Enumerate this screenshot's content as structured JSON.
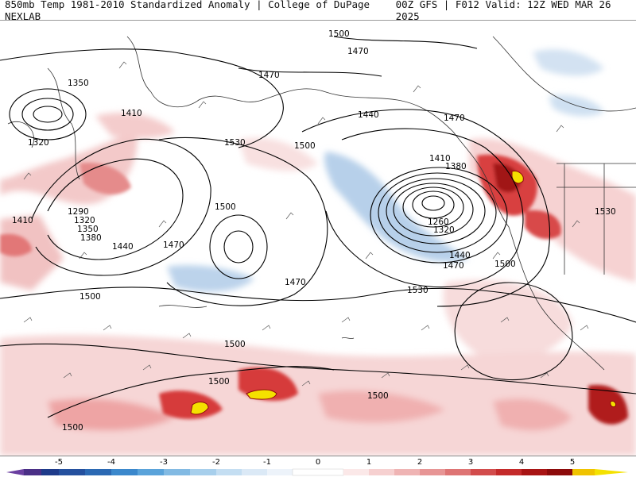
{
  "header": {
    "title": "850mb Temp 1981-2010 Standardized Anomaly | College of DuPage NEXLAB",
    "run_info": "00Z GFS | F012 Valid: 12Z WED MAR 26 2025"
  },
  "map": {
    "contour_labels": [
      "1500",
      "1470",
      "1350",
      "1470",
      "1410",
      "1320",
      "1440",
      "1470",
      "1530",
      "1500",
      "1410",
      "1380",
      "1290",
      "1320",
      "1350",
      "1380",
      "1500",
      "1470",
      "1440",
      "1260",
      "1320",
      "1410",
      "1440",
      "1470",
      "1500",
      "1530",
      "1470",
      "1500",
      "1530",
      "1500",
      "1500",
      "1500",
      "1500"
    ],
    "colors": {
      "positive_light": "#f7dcdc",
      "positive_medium": "#ec9a9a",
      "positive_strong": "#cf2b2b",
      "positive_extreme": "#8c0a0a",
      "yellow": "#f4e100",
      "negative_light": "#c6d9ee",
      "negative_medium": "#8db6de",
      "contour": "#000000",
      "coast": "#333333"
    }
  },
  "colorbar": {
    "ticks": [
      "-5",
      "-4",
      "-3",
      "-2",
      "-1",
      "0",
      "1",
      "2",
      "3",
      "4",
      "5"
    ]
  }
}
